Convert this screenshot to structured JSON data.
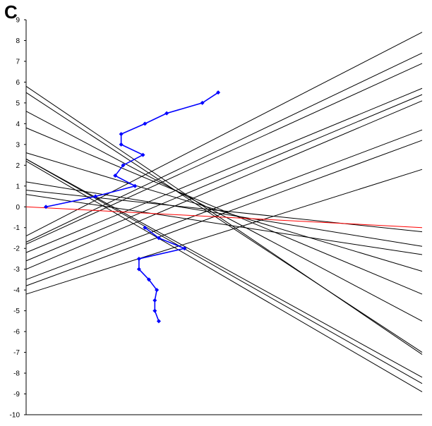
{
  "panel_label": "C",
  "chart_data": {
    "type": "line",
    "title": "",
    "xlabel": "",
    "ylabel": "",
    "ylim": [
      -10,
      9
    ],
    "xlim": [
      0,
      100
    ],
    "grid": false,
    "yticks": [
      "9",
      "8",
      "7",
      "6",
      "5",
      "4",
      "3",
      "2",
      "1",
      "0",
      "-1",
      "-2",
      "-3",
      "-4",
      "-5",
      "-6",
      "-7",
      "-8",
      "-9",
      "-10"
    ],
    "colors": {
      "lines": "#000000",
      "reference": "#ff0000",
      "path": "#0000ff"
    },
    "lines": [
      {
        "y0": 5.8,
        "y1": -7.1
      },
      {
        "y0": 5.5,
        "y1": -7.0
      },
      {
        "y0": 4.6,
        "y1": -5.5
      },
      {
        "y0": 3.8,
        "y1": -4.2
      },
      {
        "y0": 2.6,
        "y1": -3.1
      },
      {
        "y0": 2.3,
        "y1": -8.2
      },
      {
        "y0": 2.3,
        "y1": -8.5
      },
      {
        "y0": 2.2,
        "y1": -8.9
      },
      {
        "y0": 1.2,
        "y1": -1.9
      },
      {
        "y0": 0.8,
        "y1": -1.2
      },
      {
        "y0": 0.6,
        "y1": -2.3
      },
      {
        "y0": -1.4,
        "y1": 8.4
      },
      {
        "y0": -1.7,
        "y1": 7.4
      },
      {
        "y0": -1.8,
        "y1": 6.9
      },
      {
        "y0": -2.2,
        "y1": 5.7
      },
      {
        "y0": -2.6,
        "y1": 5.4
      },
      {
        "y0": -3.0,
        "y1": 5.1
      },
      {
        "y0": -3.5,
        "y1": 3.7
      },
      {
        "y0": -3.8,
        "y1": 3.2
      },
      {
        "y0": -4.2,
        "y1": 1.8
      }
    ],
    "reference_line": {
      "y0": 0.0,
      "y1": -1.0
    },
    "path_series": [
      [
        5.0,
        0.0
      ],
      [
        17.5,
        0.5
      ],
      [
        27.5,
        1.0
      ],
      [
        22.5,
        1.5
      ],
      [
        24.5,
        2.0
      ],
      [
        29.5,
        2.5
      ],
      [
        24.0,
        3.0
      ],
      [
        24.0,
        3.5
      ],
      [
        30.0,
        4.0
      ],
      [
        35.5,
        4.5
      ],
      [
        44.5,
        5.0
      ],
      [
        48.5,
        5.5
      ],
      [
        30.0,
        -1.0
      ],
      [
        33.5,
        -1.5
      ],
      [
        40.0,
        -2.0
      ],
      [
        28.5,
        -2.5
      ],
      [
        28.5,
        -3.0
      ],
      [
        31.0,
        -3.5
      ],
      [
        33.0,
        -4.0
      ],
      [
        32.5,
        -4.5
      ],
      [
        32.5,
        -5.0
      ],
      [
        33.5,
        -5.5
      ]
    ]
  }
}
